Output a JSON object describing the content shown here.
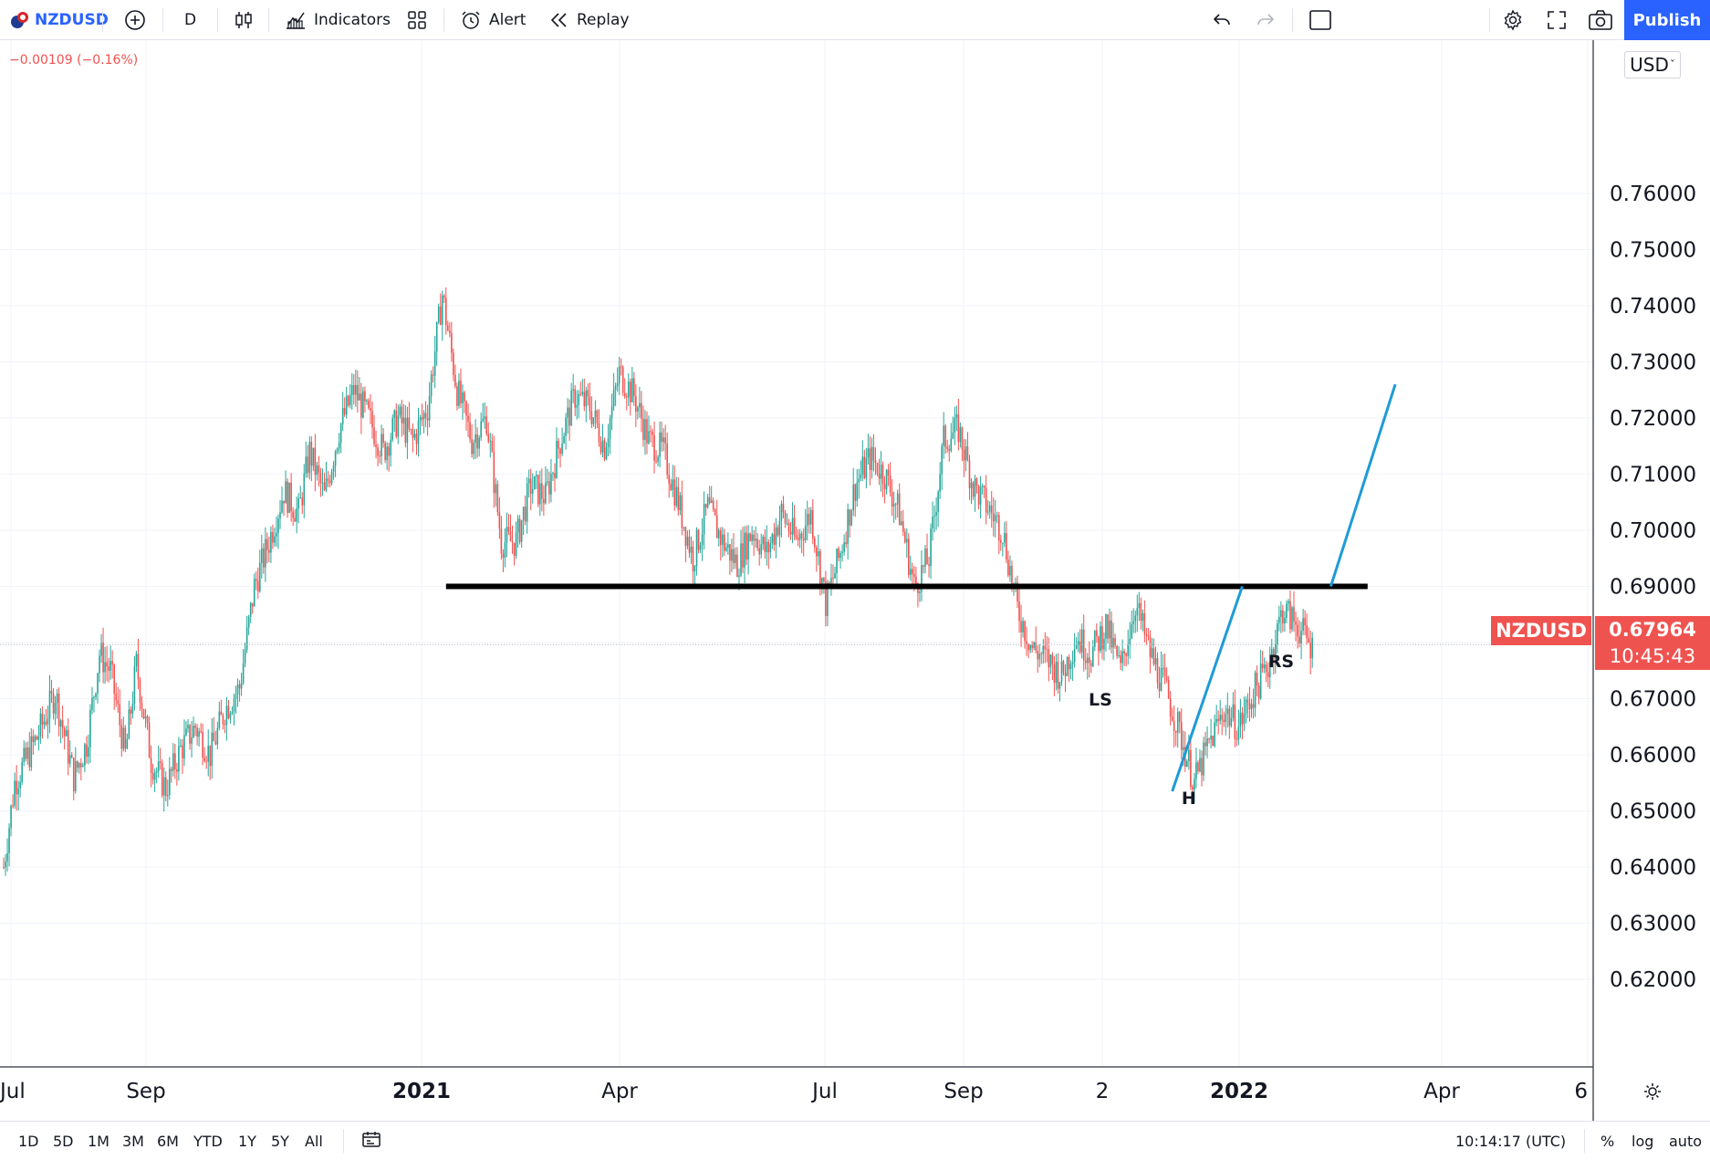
{
  "toolbar": {
    "symbol": "NZDUSD",
    "interval": "D",
    "indicators_label": "Indicators",
    "alert_label": "Alert",
    "replay_label": "Replay",
    "publish_label": "Publish"
  },
  "price_change": "−0.00109 (−0.16%)",
  "currency": "USD",
  "last_price_label": {
    "symbol": "NZDUSD",
    "price": "0.67964",
    "countdown": "10:45:43",
    "color": "#ef5350"
  },
  "bottombar": {
    "ranges": [
      "1D",
      "5D",
      "1M",
      "3M",
      "6M",
      "YTD",
      "1Y",
      "5Y",
      "All"
    ],
    "time": "10:14:17 (UTC)",
    "percent_label": "%",
    "log_label": "log",
    "auto_label": "auto"
  },
  "chart_data": {
    "type": "candlestick",
    "symbol": "NZDUSD",
    "interval": "D",
    "ylim": [
      0.615,
      0.766
    ],
    "y_ticks": [
      "0.76000",
      "0.75000",
      "0.74000",
      "0.73000",
      "0.72000",
      "0.71000",
      "0.70000",
      "0.69000",
      "0.68000",
      "0.67000",
      "0.66000",
      "0.65000",
      "0.64000",
      "0.63000",
      "0.62000"
    ],
    "x_ticks": [
      {
        "label": "Jul",
        "bold": false
      },
      {
        "label": "Sep",
        "bold": false
      },
      {
        "label": "2021",
        "bold": true
      },
      {
        "label": "Apr",
        "bold": false
      },
      {
        "label": "Jul",
        "bold": false
      },
      {
        "label": "Sep",
        "bold": false
      },
      {
        "label": "2",
        "bold": false
      },
      {
        "label": "2022",
        "bold": true
      },
      {
        "label": "Apr",
        "bold": false
      },
      {
        "label": "6",
        "bold": false
      }
    ],
    "up_color": "#26a69a",
    "down_color": "#ef5350",
    "price_path": [
      [
        0,
        0.64
      ],
      [
        6,
        0.655
      ],
      [
        18,
        0.663
      ],
      [
        28,
        0.671
      ],
      [
        38,
        0.656
      ],
      [
        45,
        0.662
      ],
      [
        52,
        0.678
      ],
      [
        58,
        0.675
      ],
      [
        66,
        0.66
      ],
      [
        72,
        0.676
      ],
      [
        80,
        0.659
      ],
      [
        88,
        0.654
      ],
      [
        96,
        0.661
      ],
      [
        104,
        0.665
      ],
      [
        112,
        0.66
      ],
      [
        120,
        0.668
      ],
      [
        128,
        0.672
      ],
      [
        136,
        0.69
      ],
      [
        144,
        0.698
      ],
      [
        152,
        0.707
      ],
      [
        160,
        0.703
      ],
      [
        166,
        0.714
      ],
      [
        174,
        0.706
      ],
      [
        182,
        0.718
      ],
      [
        190,
        0.725
      ],
      [
        198,
        0.72
      ],
      [
        206,
        0.714
      ],
      [
        214,
        0.72
      ],
      [
        222,
        0.716
      ],
      [
        230,
        0.722
      ],
      [
        238,
        0.742
      ],
      [
        246,
        0.725
      ],
      [
        254,
        0.716
      ],
      [
        262,
        0.72
      ],
      [
        270,
        0.698
      ],
      [
        278,
        0.698
      ],
      [
        286,
        0.708
      ],
      [
        294,
        0.706
      ],
      [
        302,
        0.716
      ],
      [
        310,
        0.724
      ],
      [
        318,
        0.722
      ],
      [
        326,
        0.715
      ],
      [
        334,
        0.728
      ],
      [
        342,
        0.724
      ],
      [
        350,
        0.716
      ],
      [
        358,
        0.714
      ],
      [
        366,
        0.705
      ],
      [
        374,
        0.695
      ],
      [
        382,
        0.704
      ],
      [
        390,
        0.698
      ],
      [
        398,
        0.694
      ],
      [
        406,
        0.7
      ],
      [
        414,
        0.696
      ],
      [
        422,
        0.703
      ],
      [
        430,
        0.698
      ],
      [
        438,
        0.703
      ],
      [
        446,
        0.687
      ],
      [
        454,
        0.696
      ],
      [
        462,
        0.708
      ],
      [
        470,
        0.713
      ],
      [
        478,
        0.71
      ],
      [
        486,
        0.703
      ],
      [
        494,
        0.69
      ],
      [
        502,
        0.695
      ],
      [
        510,
        0.716
      ],
      [
        518,
        0.718
      ],
      [
        526,
        0.708
      ],
      [
        534,
        0.704
      ],
      [
        542,
        0.7
      ],
      [
        550,
        0.686
      ],
      [
        558,
        0.679
      ],
      [
        566,
        0.677
      ],
      [
        574,
        0.674
      ],
      [
        582,
        0.681
      ],
      [
        590,
        0.678
      ],
      [
        598,
        0.683
      ],
      [
        606,
        0.675
      ],
      [
        614,
        0.687
      ],
      [
        622,
        0.678
      ],
      [
        630,
        0.672
      ],
      [
        638,
        0.664
      ],
      [
        646,
        0.655
      ],
      [
        654,
        0.662
      ],
      [
        662,
        0.668
      ],
      [
        670,
        0.665
      ],
      [
        678,
        0.671
      ],
      [
        686,
        0.676
      ],
      [
        694,
        0.686
      ],
      [
        702,
        0.683
      ],
      [
        710,
        0.679
      ]
    ],
    "pattern_labels": [
      {
        "text": "LS",
        "date_index": 595,
        "price": 0.6688
      },
      {
        "text": "H",
        "date_index": 643,
        "price": 0.6512
      },
      {
        "text": "RS",
        "date_index": 693,
        "price": 0.6756
      }
    ],
    "lines": [
      {
        "name": "neckline",
        "from": [
          240,
          0.69
        ],
        "to": [
          740,
          0.69
        ],
        "color": "#000000"
      },
      {
        "name": "trendline-1",
        "from": [
          634,
          0.6535
        ],
        "to": [
          672,
          0.69
        ],
        "color": "#1e9bd7"
      },
      {
        "name": "trendline-2",
        "from": [
          720,
          0.69
        ],
        "to": [
          755,
          0.726
        ],
        "color": "#1e9bd7"
      }
    ]
  }
}
